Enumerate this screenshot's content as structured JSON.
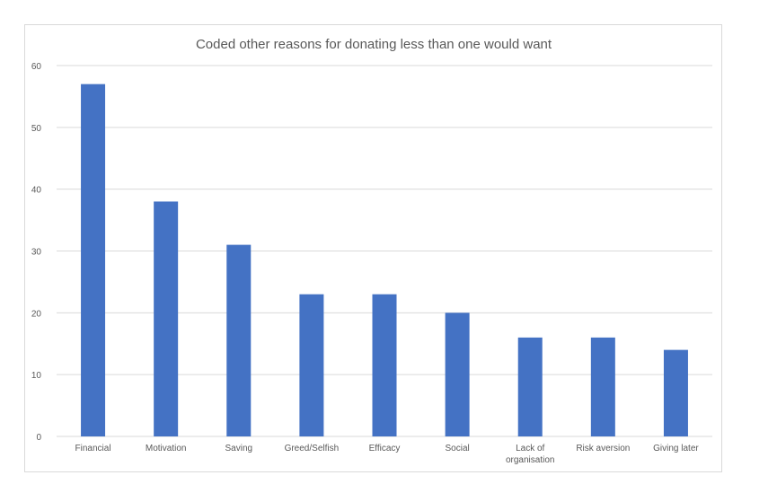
{
  "chart_data": {
    "type": "bar",
    "title": "Coded other reasons for donating less than one would want",
    "categories": [
      "Financial",
      "Motivation",
      "Saving",
      "Greed/Selfish",
      "Efficacy",
      "Social",
      "Lack of organisation",
      "Risk aversion",
      "Giving later"
    ],
    "category_lines": [
      [
        "Financial"
      ],
      [
        "Motivation"
      ],
      [
        "Saving"
      ],
      [
        "Greed/Selfish"
      ],
      [
        "Efficacy"
      ],
      [
        "Social"
      ],
      [
        "Lack of",
        "organisation"
      ],
      [
        "Risk aversion"
      ],
      [
        "Giving later"
      ]
    ],
    "values": [
      57,
      38,
      31,
      23,
      23,
      20,
      16,
      16,
      14
    ],
    "ylim": [
      0,
      60
    ],
    "yticks": [
      "0",
      "10",
      "20",
      "30",
      "40",
      "50",
      "60"
    ],
    "grid": true,
    "legend": "none",
    "bar_color": "#4472c4"
  }
}
